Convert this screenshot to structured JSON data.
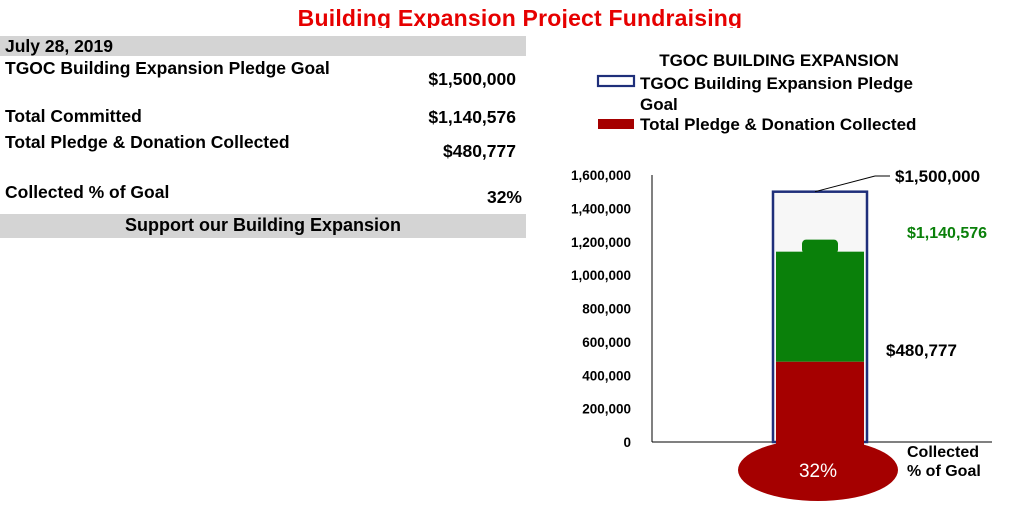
{
  "page": {
    "title": "Building Expansion Project Fundraising"
  },
  "summary": {
    "date": "July 28, 2019",
    "rows": [
      {
        "label": "TGOC Building Expansion  Pledge Goal",
        "value": "$1,500,000"
      },
      {
        "label": "Total Committed",
        "value": "$1,140,576"
      },
      {
        "label": "Total Pledge & Donation Collected",
        "value": "$480,777"
      },
      {
        "label": "Collected % of Goal",
        "value": "32%"
      }
    ],
    "footer": "Support our Building Expansion"
  },
  "colors": {
    "title": "#e60000",
    "goal_outline": "#1f2f7a",
    "committed": "#0a800a",
    "collected": "#a50000",
    "band": "#d4d4d4"
  },
  "chart_data": {
    "type": "bar",
    "title": "TGOC BUILDING EXPANSION",
    "ylim": [
      0,
      1600000
    ],
    "y_ticks": [
      "0",
      "200,000",
      "400,000",
      "600,000",
      "800,000",
      "1,000,000",
      "1,200,000",
      "1,400,000",
      "1,600,000"
    ],
    "legend": [
      {
        "name": "TGOC Building Expansion  Pledge Goal",
        "style": "outline"
      },
      {
        "name": "Total Pledge & Donation Collected",
        "style": "filled"
      }
    ],
    "legend_position": "top",
    "series": [
      {
        "name": "TGOC Building Expansion  Pledge Goal",
        "value": 1500000,
        "label": "$1,500,000"
      },
      {
        "name": "Total Committed",
        "value": 1140576,
        "label": "$1,140,576"
      },
      {
        "name": "Total Pledge & Donation Collected",
        "value": 480777,
        "label": "$480,777"
      }
    ],
    "bulb_label": "32%",
    "x_label": "Collected % of Goal",
    "grid": false
  }
}
